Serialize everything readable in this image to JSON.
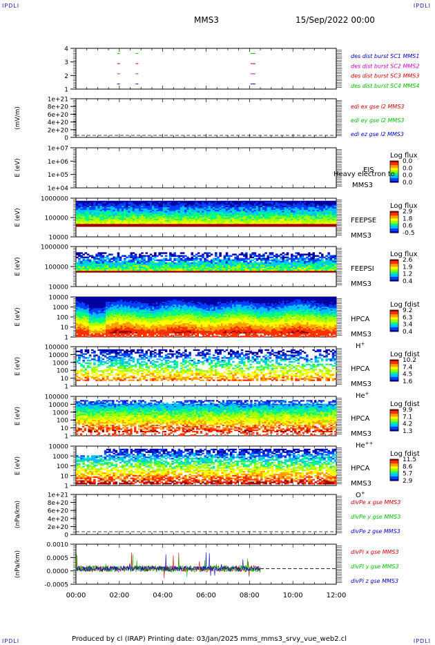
{
  "corners": {
    "tl": "IPDLI",
    "tr": "IPDLI",
    "bl": "IPDLI",
    "br": "IPDLI"
  },
  "header": {
    "spacecraft": "MMS3",
    "date": "15/Sep/2022 00:00"
  },
  "footer": {
    "text": "Produced by cl (IRAP)   Printing date: 03/Jan/2025   mms_mms3_srvy_vue_web2.cl"
  },
  "colors": {
    "blue": "#0000c8",
    "magenta": "#c800c8",
    "red": "#d00000",
    "green": "#00c000",
    "scale": [
      "#0000a0",
      "#0040ff",
      "#00c0ff",
      "#00ff80",
      "#a0ff00",
      "#ffff00",
      "#ffa000",
      "#ff3000",
      "#a00000"
    ]
  },
  "chart_data": [
    {
      "type": "line",
      "id": "burst",
      "ylim": [
        0.5,
        4.5
      ],
      "yticks": [
        "1",
        "2",
        "3",
        "4"
      ],
      "xlabel": "",
      "ylabel": "",
      "legend": [
        "des dist burst SC1 MMS1",
        "des dist burst SC2 MMS2",
        "des dist burst SC3 MMS3",
        "des dist burst SC4 MMS4"
      ],
      "segments": [
        {
          "y": 4,
          "color": "green",
          "x": [
            1.9,
            2.75,
            8.05
          ]
        },
        {
          "y": 3,
          "color": "red",
          "x": [
            1.9,
            2.75,
            8.05
          ]
        },
        {
          "y": 2,
          "color": "magenta",
          "x": [
            1.9,
            2.75,
            8.05
          ]
        },
        {
          "y": 1,
          "color": "blue",
          "x": [
            1.9,
            2.75,
            8.05
          ]
        }
      ]
    },
    {
      "type": "line",
      "id": "edi",
      "ylabel": "(mV/m)",
      "yticks": [
        "0",
        "2e+20",
        "4e+20",
        "6e+20",
        "8e+20",
        "1e+21"
      ],
      "legend": [
        "edi ex gse l2 MMS3",
        "edi ey gse l2 MMS3",
        "edi ez gse l2 MMS3"
      ],
      "zero_line": true
    },
    {
      "type": "heatmap",
      "id": "eis",
      "ylabel": "E (eV)",
      "yticks": [
        "1e+04",
        "1e+05",
        "1e+06",
        "1e+07"
      ],
      "log": true,
      "labels": [
        "EIS",
        "MMS3"
      ],
      "overlay": "Heavy electron to",
      "colorbar": {
        "title": "Log flux",
        "ticks": [
          "0.0",
          "0.0",
          "0.0",
          "0.0"
        ]
      },
      "filled": false
    },
    {
      "type": "heatmap",
      "id": "feepse",
      "ylabel": "E (eV)",
      "yticks": [
        "10000",
        "100000",
        "1000000"
      ],
      "log": true,
      "labels": [
        "FEEPSE",
        "MMS3"
      ],
      "colorbar": {
        "title": "Log flux",
        "ticks": [
          "2.9",
          "1.8",
          "0.6",
          "-0.5"
        ]
      }
    },
    {
      "type": "heatmap",
      "id": "feepsi",
      "ylabel": "E (eV)",
      "yticks": [
        "10000",
        "100000",
        "1000000"
      ],
      "log": true,
      "labels": [
        "FEEPSI",
        "MMS3"
      ],
      "colorbar": {
        "title": "Log flux",
        "ticks": [
          "2.6",
          "1.9",
          "1.2",
          "0.4"
        ]
      }
    },
    {
      "type": "heatmap",
      "id": "hpca_h",
      "ylabel": "E (eV)",
      "yticks": [
        "1",
        "10",
        "100",
        "1000",
        "10000"
      ],
      "log": true,
      "labels": [
        "HPCA",
        "MMS3",
        "H"
      ],
      "sup": "+",
      "colorbar": {
        "title": "Log fdist",
        "ticks": [
          "9.2",
          "6.3",
          "3.4",
          "0.4"
        ]
      }
    },
    {
      "type": "heatmap",
      "id": "hpca_he",
      "ylabel": "E (eV)",
      "yticks": [
        "1",
        "10",
        "100",
        "1000",
        "10000",
        "100000"
      ],
      "log": true,
      "labels": [
        "HPCA",
        "MMS3",
        "He"
      ],
      "sup": "+",
      "colorbar": {
        "title": "Log fdist",
        "ticks": [
          "10.2",
          "7.4",
          "4.5",
          "1.6"
        ]
      }
    },
    {
      "type": "heatmap",
      "id": "hpca_hepp",
      "ylabel": "E (eV)",
      "yticks": [
        "1",
        "10",
        "100",
        "1000",
        "10000",
        "100000"
      ],
      "log": true,
      "labels": [
        "HPCA",
        "MMS3",
        "He"
      ],
      "sup": "++",
      "colorbar": {
        "title": "Log fdist",
        "ticks": [
          "9.9",
          "7.1",
          "4.2",
          "1.3"
        ]
      }
    },
    {
      "type": "heatmap",
      "id": "hpca_o",
      "ylabel": "E (eV)",
      "yticks": [
        "1",
        "10",
        "100",
        "1000",
        "10000"
      ],
      "log": true,
      "labels": [
        "HPCA",
        "MMS3",
        "O"
      ],
      "sup": "+",
      "colorbar": {
        "title": "Log fdist",
        "ticks": [
          "11.5",
          "8.6",
          "5.7",
          "2.9"
        ]
      }
    },
    {
      "type": "line",
      "id": "divpe",
      "ylabel": "(nPa/km)",
      "yticks": [
        "0",
        "2e+20",
        "4e+20",
        "6e+20",
        "8e+20",
        "1e+21"
      ],
      "legend": [
        "divPe x gse MMS3",
        "divPe y gse MMS3",
        "divPe z gse MMS3"
      ],
      "zero_line": true
    },
    {
      "type": "line",
      "id": "divpi",
      "ylabel": "(nPa/km)",
      "yticks": [
        "-0.0005",
        "0.0000",
        "0.0005",
        "0.0010"
      ],
      "ylim": [
        -0.0007,
        0.0011
      ],
      "legend": [
        "divPi x gse MMS3",
        "divPi y gse MMS3",
        "divPi z gse MMS3"
      ],
      "data_end_hour": 8.5,
      "zero_line": true
    }
  ],
  "x_axis": {
    "xlim": [
      0,
      12
    ],
    "ticks": [
      "00:00",
      "02:00",
      "04:00",
      "06:00",
      "08:00",
      "10:00",
      "12:00"
    ]
  }
}
